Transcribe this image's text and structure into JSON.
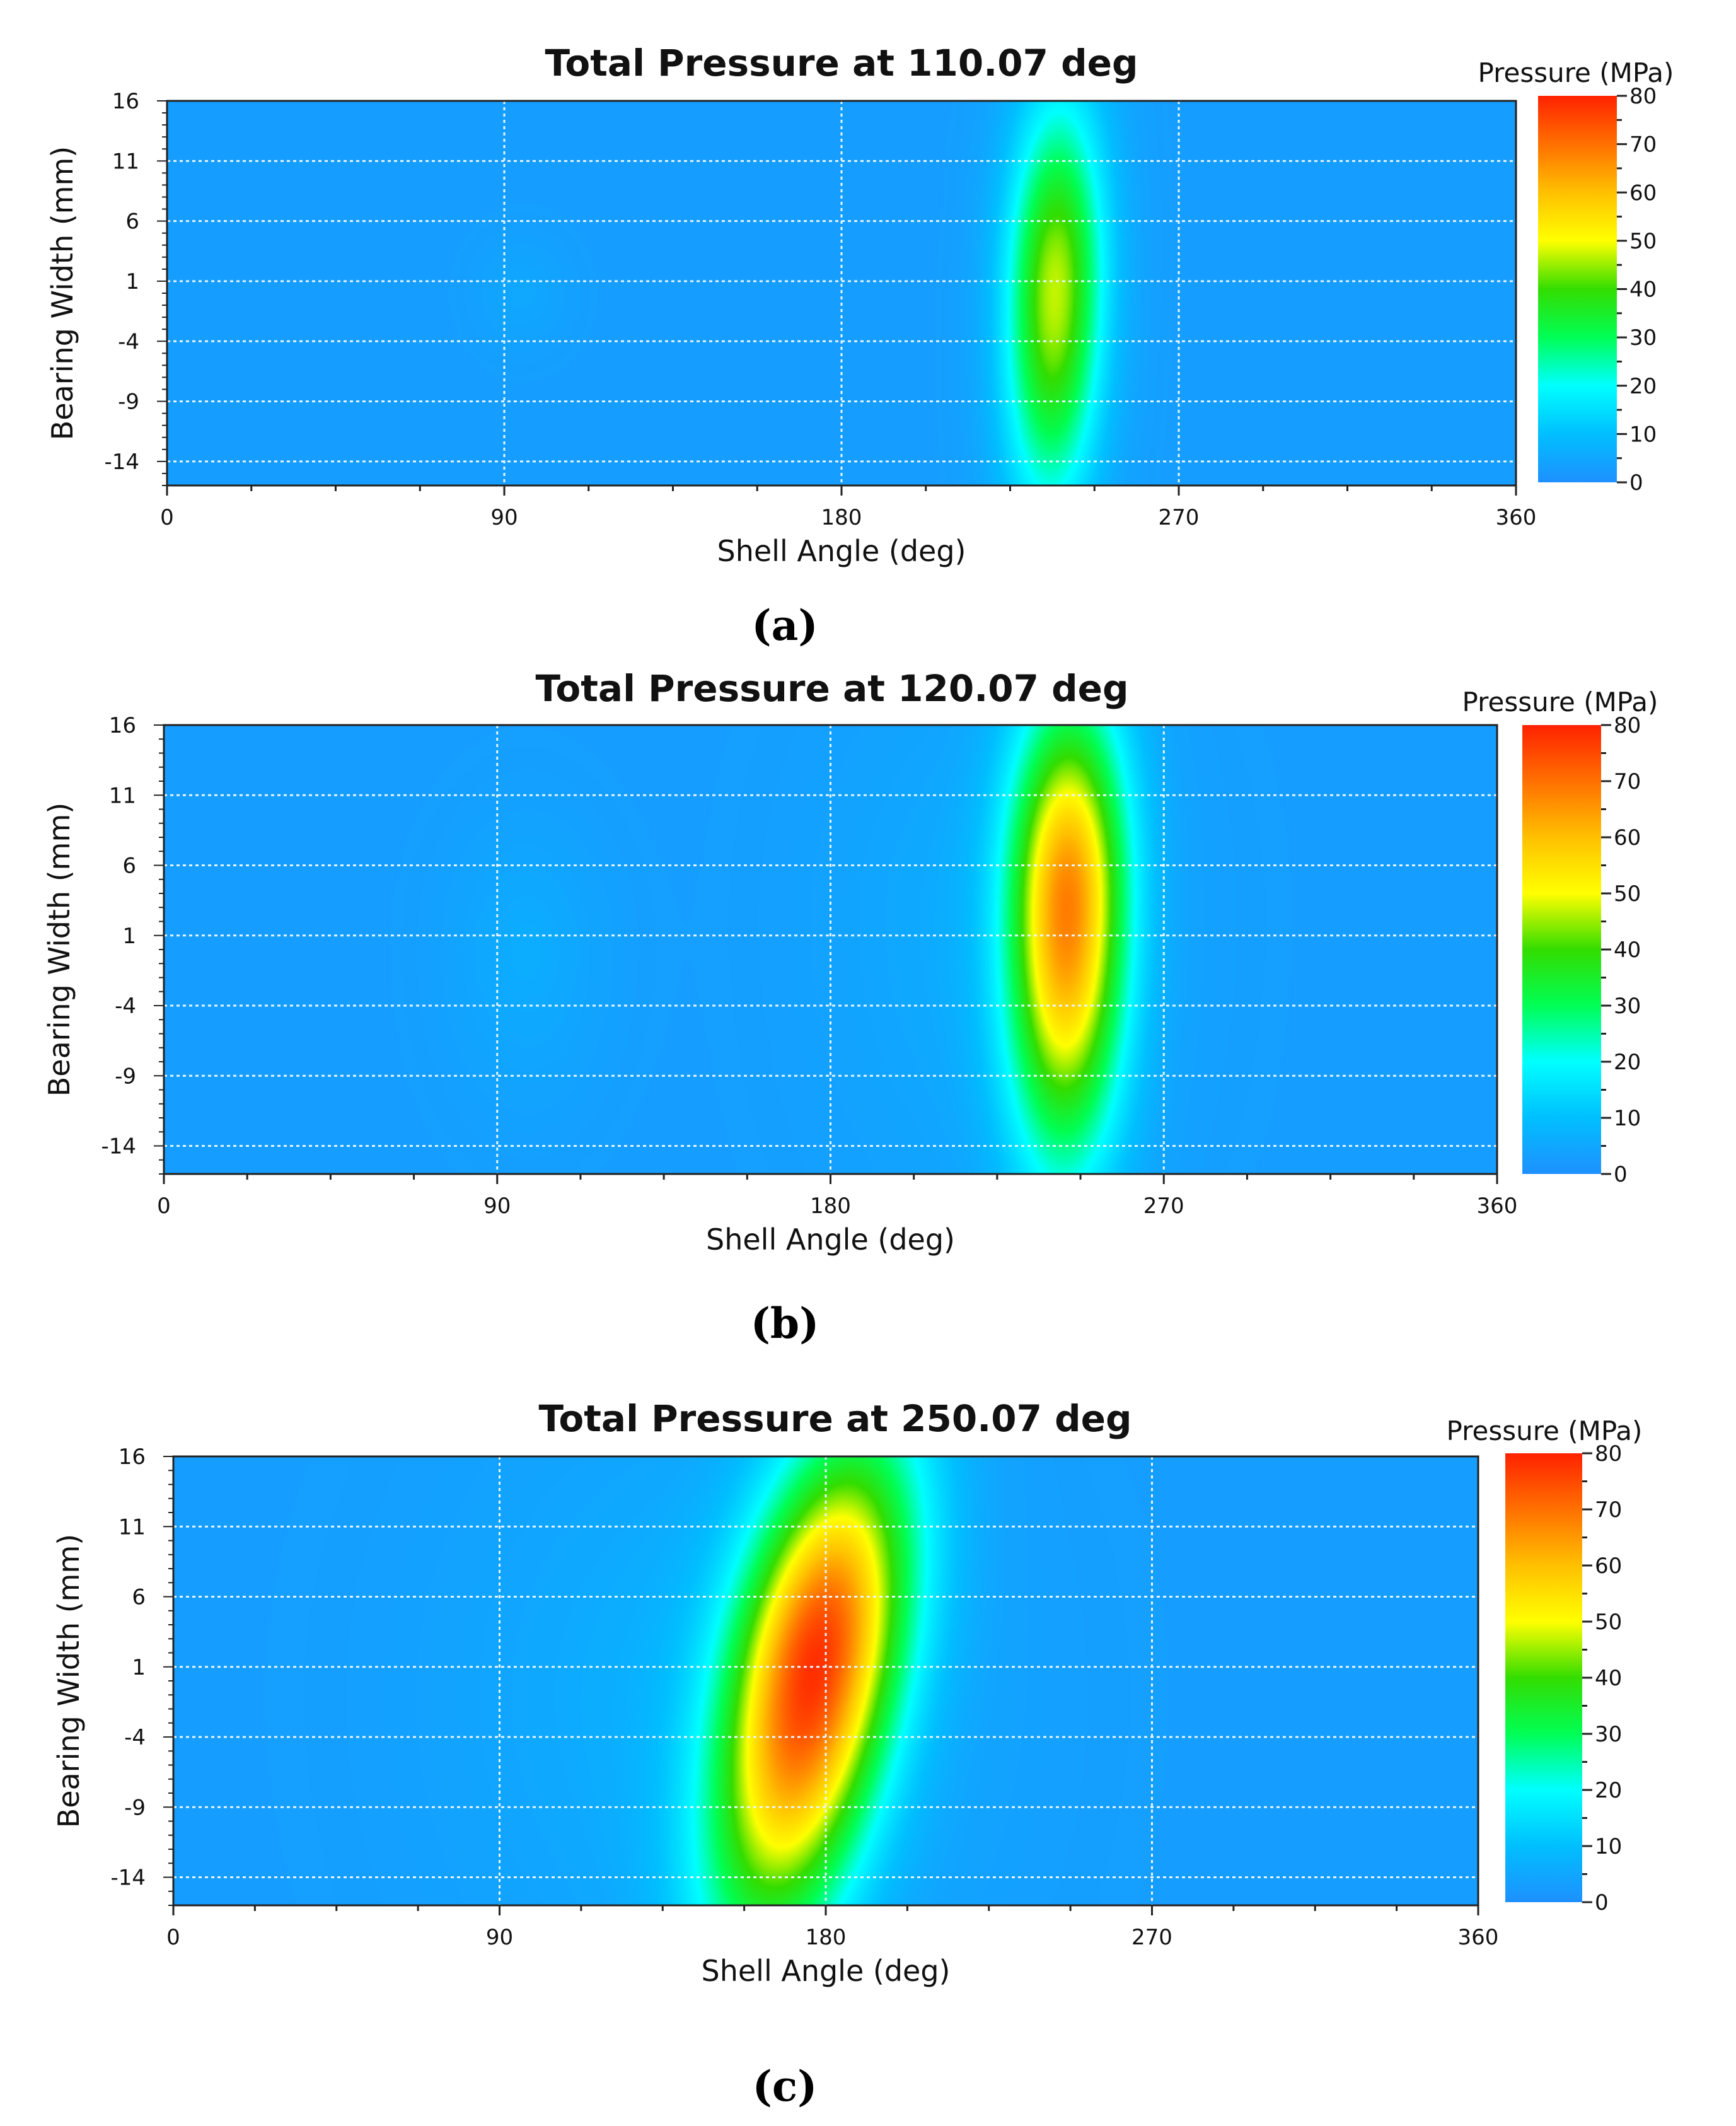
{
  "chart_data": [
    {
      "type": "heatmap",
      "panel_label": "a",
      "title": "Total Pressure at 110.07 deg",
      "xlabel": "Shell Angle (deg)",
      "ylabel": "Bearing Width (mm)",
      "xlim": [
        0,
        360
      ],
      "ylim": [
        -16,
        16
      ],
      "x_ticks": [
        0,
        90,
        180,
        270,
        360
      ],
      "y_ticks": [
        16,
        11,
        6,
        1,
        -4,
        -9,
        -14
      ],
      "grid": true,
      "colorbar": {
        "title": "Pressure (MPa)",
        "min": 0,
        "max": 80,
        "ticks": [
          80,
          70,
          60,
          50,
          40,
          30,
          20,
          10,
          0
        ]
      },
      "background_value": 3,
      "peaks": [
        {
          "x": 237,
          "y": 0,
          "sx": 9,
          "sy_top": 11,
          "sy_bottom": 12,
          "peak": 44,
          "skew": 0.08
        },
        {
          "x": 95,
          "y": 0,
          "sx": 8,
          "sy_top": 3,
          "sy_bottom": 3,
          "peak": 2,
          "skew": 0
        }
      ]
    },
    {
      "type": "heatmap",
      "panel_label": "b",
      "title": "Total Pressure at 120.07 deg",
      "xlabel": "Shell Angle (deg)",
      "ylabel": "Bearing Width (mm)",
      "xlim": [
        0,
        360
      ],
      "ylim": [
        -16,
        16
      ],
      "x_ticks": [
        0,
        90,
        180,
        270,
        360
      ],
      "y_ticks": [
        16,
        11,
        6,
        1,
        -4,
        -9,
        -14
      ],
      "grid": true,
      "colorbar": {
        "title": "Pressure (MPa)",
        "min": 0,
        "max": 80,
        "ticks": [
          80,
          70,
          60,
          50,
          40,
          30,
          20,
          10,
          0
        ]
      },
      "background_value": 3,
      "peaks": [
        {
          "x": 244,
          "y": 3,
          "sx": 11,
          "sy_top": 10,
          "sy_bottom": 12,
          "peak": 63,
          "skew": 0.05
        },
        {
          "x": 225,
          "y": 2,
          "sx": 30,
          "sy_top": 12,
          "sy_bottom": 14,
          "peak": 3,
          "skew": 0
        },
        {
          "x": 98,
          "y": 0,
          "sx": 14,
          "sy_top": 6,
          "sy_bottom": 7,
          "peak": 3,
          "skew": 0
        }
      ]
    },
    {
      "type": "heatmap",
      "panel_label": "c",
      "title": "Total Pressure at 250.07 deg",
      "xlabel": "Shell Angle (deg)",
      "ylabel": "Bearing Width (mm)",
      "xlim": [
        0,
        360
      ],
      "ylim": [
        -16,
        16
      ],
      "x_ticks": [
        0,
        90,
        180,
        270,
        360
      ],
      "y_ticks": [
        16,
        11,
        6,
        1,
        -4,
        -9,
        -14
      ],
      "grid": true,
      "colorbar": {
        "title": "Pressure (MPa)",
        "min": 0,
        "max": 80,
        "ticks": [
          80,
          70,
          60,
          50,
          40,
          30,
          20,
          10,
          0
        ]
      },
      "background_value": 3,
      "peaks": [
        {
          "x": 177,
          "y": 1,
          "sx": 16,
          "sy_top": 11,
          "sy_bottom": 13,
          "peak": 72,
          "skew": 0.7
        },
        {
          "x": 150,
          "y": -1,
          "sx": 45,
          "sy_top": 14,
          "sy_bottom": 15,
          "peak": 4,
          "skew": 0
        }
      ]
    }
  ],
  "colormap": [
    "#1e90ff",
    "#00bfff",
    "#00ffff",
    "#00ff55",
    "#33dd00",
    "#ffff00",
    "#ffc000",
    "#ff7000",
    "#ff2200"
  ]
}
